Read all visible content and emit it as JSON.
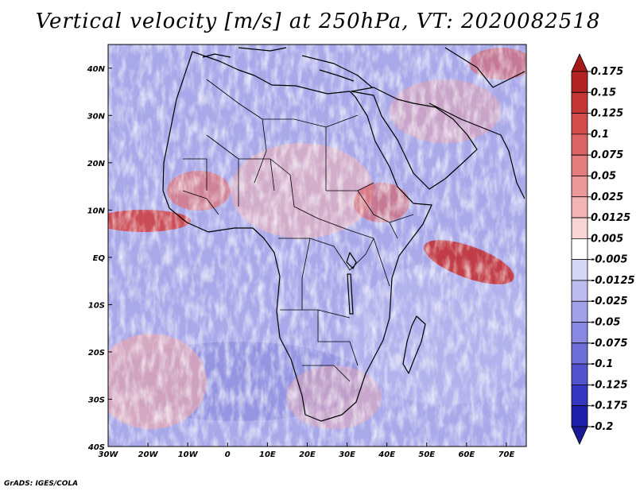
{
  "title": "Vertical velocity [m/s] at 250hPa, VT: 2020082518",
  "credit": "GrADS: IGES/COLA",
  "map": {
    "lat_labels": [
      "40N",
      "30N",
      "20N",
      "10N",
      "EQ",
      "10S",
      "20S",
      "30S",
      "40S"
    ],
    "lat_values": [
      40,
      30,
      20,
      10,
      0,
      -10,
      -20,
      -30,
      -40
    ],
    "lon_labels": [
      "30W",
      "20W",
      "10W",
      "0",
      "10E",
      "20E",
      "30E",
      "40E",
      "50E",
      "60E",
      "70E"
    ],
    "lon_values": [
      -30,
      -20,
      -10,
      0,
      10,
      20,
      30,
      40,
      50,
      60,
      70
    ],
    "lat_range": [
      -40,
      45
    ],
    "lon_range": [
      -30,
      75
    ]
  },
  "colorbar": {
    "labels": [
      "0.175",
      "0.15",
      "0.125",
      "0.1",
      "0.075",
      "0.05",
      "0.025",
      "0.0125",
      "0.005",
      "-0.005",
      "-0.0125",
      "-0.025",
      "-0.05",
      "-0.075",
      "-0.1",
      "-0.125",
      "-0.175",
      "-0.2"
    ],
    "colors": [
      "#a41a1a",
      "#b42323",
      "#c43636",
      "#d24c4c",
      "#dc6464",
      "#e47e7e",
      "#ec9898",
      "#f2b4b4",
      "#f8d4d4",
      "#ffffff",
      "#d6d6f6",
      "#bcbcf0",
      "#a2a2ea",
      "#8888e2",
      "#6e6eda",
      "#5252ce",
      "#3636c0",
      "#2020ac",
      "#1a1a96"
    ]
  }
}
